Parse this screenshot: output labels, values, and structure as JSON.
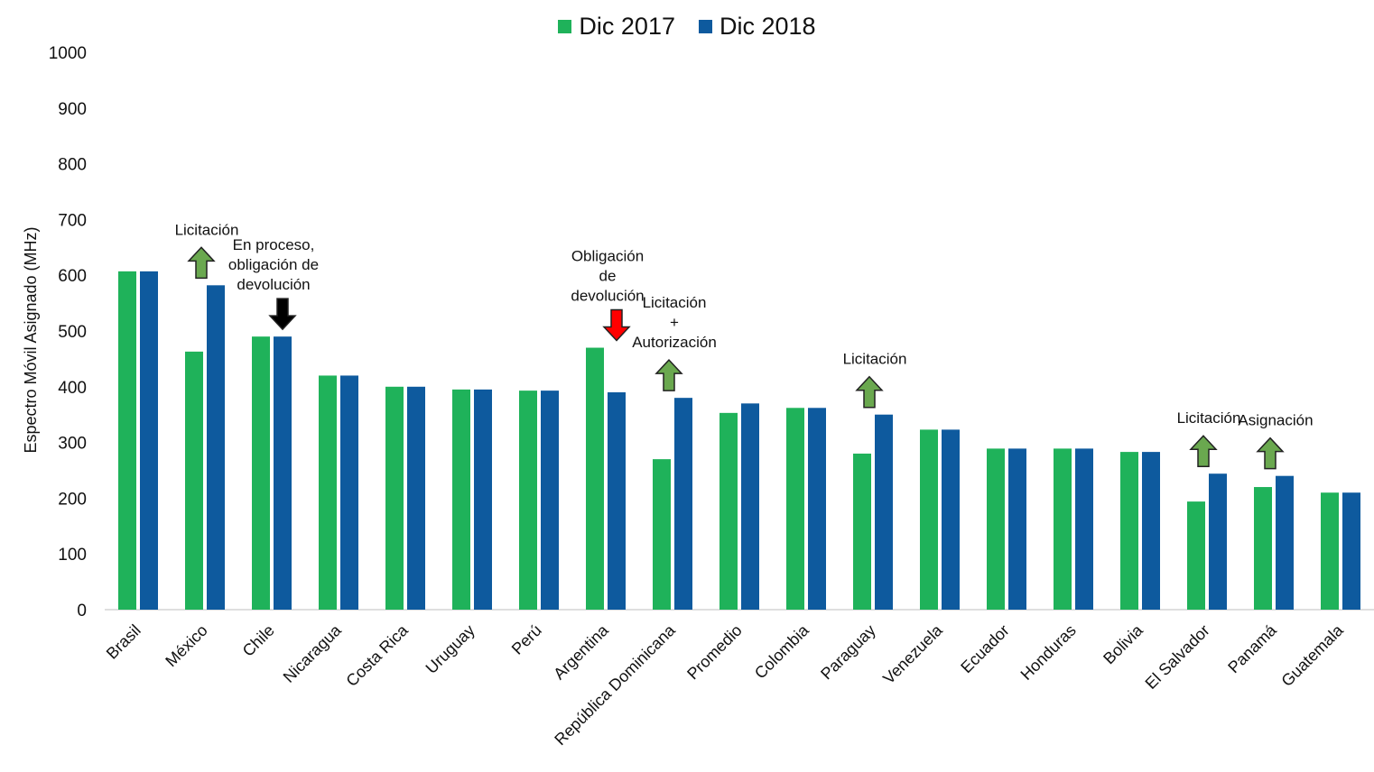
{
  "chart_data": {
    "type": "bar",
    "title": "",
    "xlabel": "",
    "ylabel": "Espectro Móvil Asignado (MHz)",
    "ylim": [
      0,
      1000
    ],
    "yticks": [
      0,
      100,
      200,
      300,
      400,
      500,
      600,
      700,
      800,
      900,
      1000
    ],
    "grid": false,
    "legend_position": "top-center",
    "categories": [
      "Brasil",
      "México",
      "Chile",
      "Nicaragua",
      "Costa Rica",
      "Uruguay",
      "Perú",
      "Argentina",
      "República Dominicana",
      "Promedio",
      "Colombia",
      "Paraguay",
      "Venezuela",
      "Ecuador",
      "Honduras",
      "Bolivia",
      "El Salvador",
      "Panamá",
      "Guatemala"
    ],
    "series": [
      {
        "name": "Dic 2017",
        "color": "#1fb25a",
        "values": [
          607,
          463,
          490,
          420,
          400,
          395,
          393,
          470,
          270,
          353,
          362,
          280,
          323,
          289,
          289,
          283,
          194,
          220,
          210
        ]
      },
      {
        "name": "Dic 2018",
        "color": "#0e5a9e",
        "values": [
          607,
          582,
          490,
          420,
          400,
          395,
          393,
          390,
          380,
          370,
          362,
          350,
          323,
          289,
          289,
          283,
          244,
          240,
          210
        ]
      }
    ],
    "annotations": [
      {
        "category": "México",
        "lines": [
          "Licitación"
        ],
        "arrow": "up",
        "color": "#6aa84f"
      },
      {
        "category": "Chile",
        "lines": [
          "En proceso,",
          "obligación de",
          "devolución"
        ],
        "arrow": "down",
        "color": "#000000"
      },
      {
        "category": "Argentina",
        "lines": [
          "Obligación",
          "de",
          "devolución"
        ],
        "arrow": "down",
        "color": "#ff0000"
      },
      {
        "category": "República Dominicana",
        "lines": [
          "Licitación",
          "+",
          "Autorización"
        ],
        "arrow": "up",
        "color": "#6aa84f"
      },
      {
        "category": "Paraguay",
        "lines": [
          "Licitación"
        ],
        "arrow": "up",
        "color": "#6aa84f"
      },
      {
        "category": "El Salvador",
        "lines": [
          "Licitación"
        ],
        "arrow": "up",
        "color": "#6aa84f"
      },
      {
        "category": "Panamá",
        "lines": [
          "Asignación"
        ],
        "arrow": "up",
        "color": "#6aa84f"
      }
    ]
  }
}
